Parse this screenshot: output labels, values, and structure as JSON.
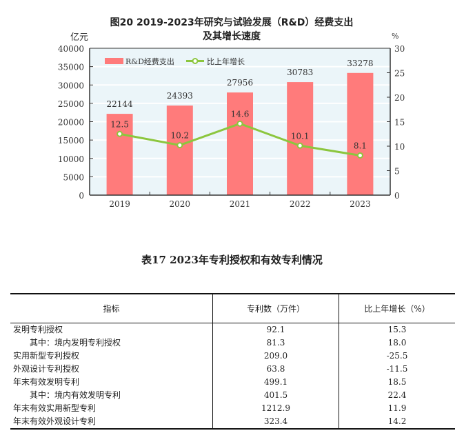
{
  "chart_data": {
    "type": "bar+line",
    "title_line1": "图20   2019-2023年研究与试验发展（R&D）经费支出",
    "title_line2": "及其增长速度",
    "ylabel_left": "亿元",
    "ylabel_right": "%",
    "categories": [
      "2019",
      "2020",
      "2021",
      "2022",
      "2023"
    ],
    "ylim_left": [
      0,
      40000
    ],
    "yticks_left": [
      "0",
      "5000",
      "10000",
      "15000",
      "20000",
      "25000",
      "30000",
      "35000",
      "40000"
    ],
    "ylim_right": [
      0,
      30
    ],
    "yticks_right": [
      "0",
      "5",
      "10",
      "15",
      "20",
      "25",
      "30"
    ],
    "series": [
      {
        "name": "R&D经费支出",
        "type": "bar",
        "axis": "left",
        "values": [
          22144,
          24393,
          27956,
          30783,
          33278
        ],
        "labels": [
          "22144",
          "24393",
          "27956",
          "30783",
          "33278"
        ],
        "color": "#ff7b7b"
      },
      {
        "name": "比上年增长",
        "type": "line",
        "axis": "right",
        "values": [
          12.5,
          10.2,
          14.6,
          10.1,
          8.1
        ],
        "labels": [
          "12.5",
          "10.2",
          "14.6",
          "10.1",
          "8.1"
        ],
        "color": "#8cc63e"
      }
    ],
    "legend": "top-left",
    "grid": true
  },
  "table": {
    "title": "表17    2023年专利授权和有效专利情况",
    "headers": [
      "指标",
      "专利数（万件）",
      "比上年增长（%）"
    ],
    "rows": [
      {
        "name": "发明专利授权",
        "count": "92.1",
        "growth": "15.3",
        "indent": false
      },
      {
        "name": "其中：境内发明专利授权",
        "count": "81.3",
        "growth": "18.0",
        "indent": true
      },
      {
        "name": "实用新型专利授权",
        "count": "209.0",
        "growth": "-25.5",
        "indent": false
      },
      {
        "name": "外观设计专利授权",
        "count": "63.8",
        "growth": "-11.5",
        "indent": false
      },
      {
        "name": "年末有效发明专利",
        "count": "499.1",
        "growth": "18.5",
        "indent": false
      },
      {
        "name": "其中：境内有效发明专利",
        "count": "401.5",
        "growth": "22.4",
        "indent": true
      },
      {
        "name": "年末有效实用新型专利",
        "count": "1212.9",
        "growth": "11.9",
        "indent": false
      },
      {
        "name": "年末有效外观设计专利",
        "count": "323.4",
        "growth": "14.2",
        "indent": false
      }
    ]
  }
}
